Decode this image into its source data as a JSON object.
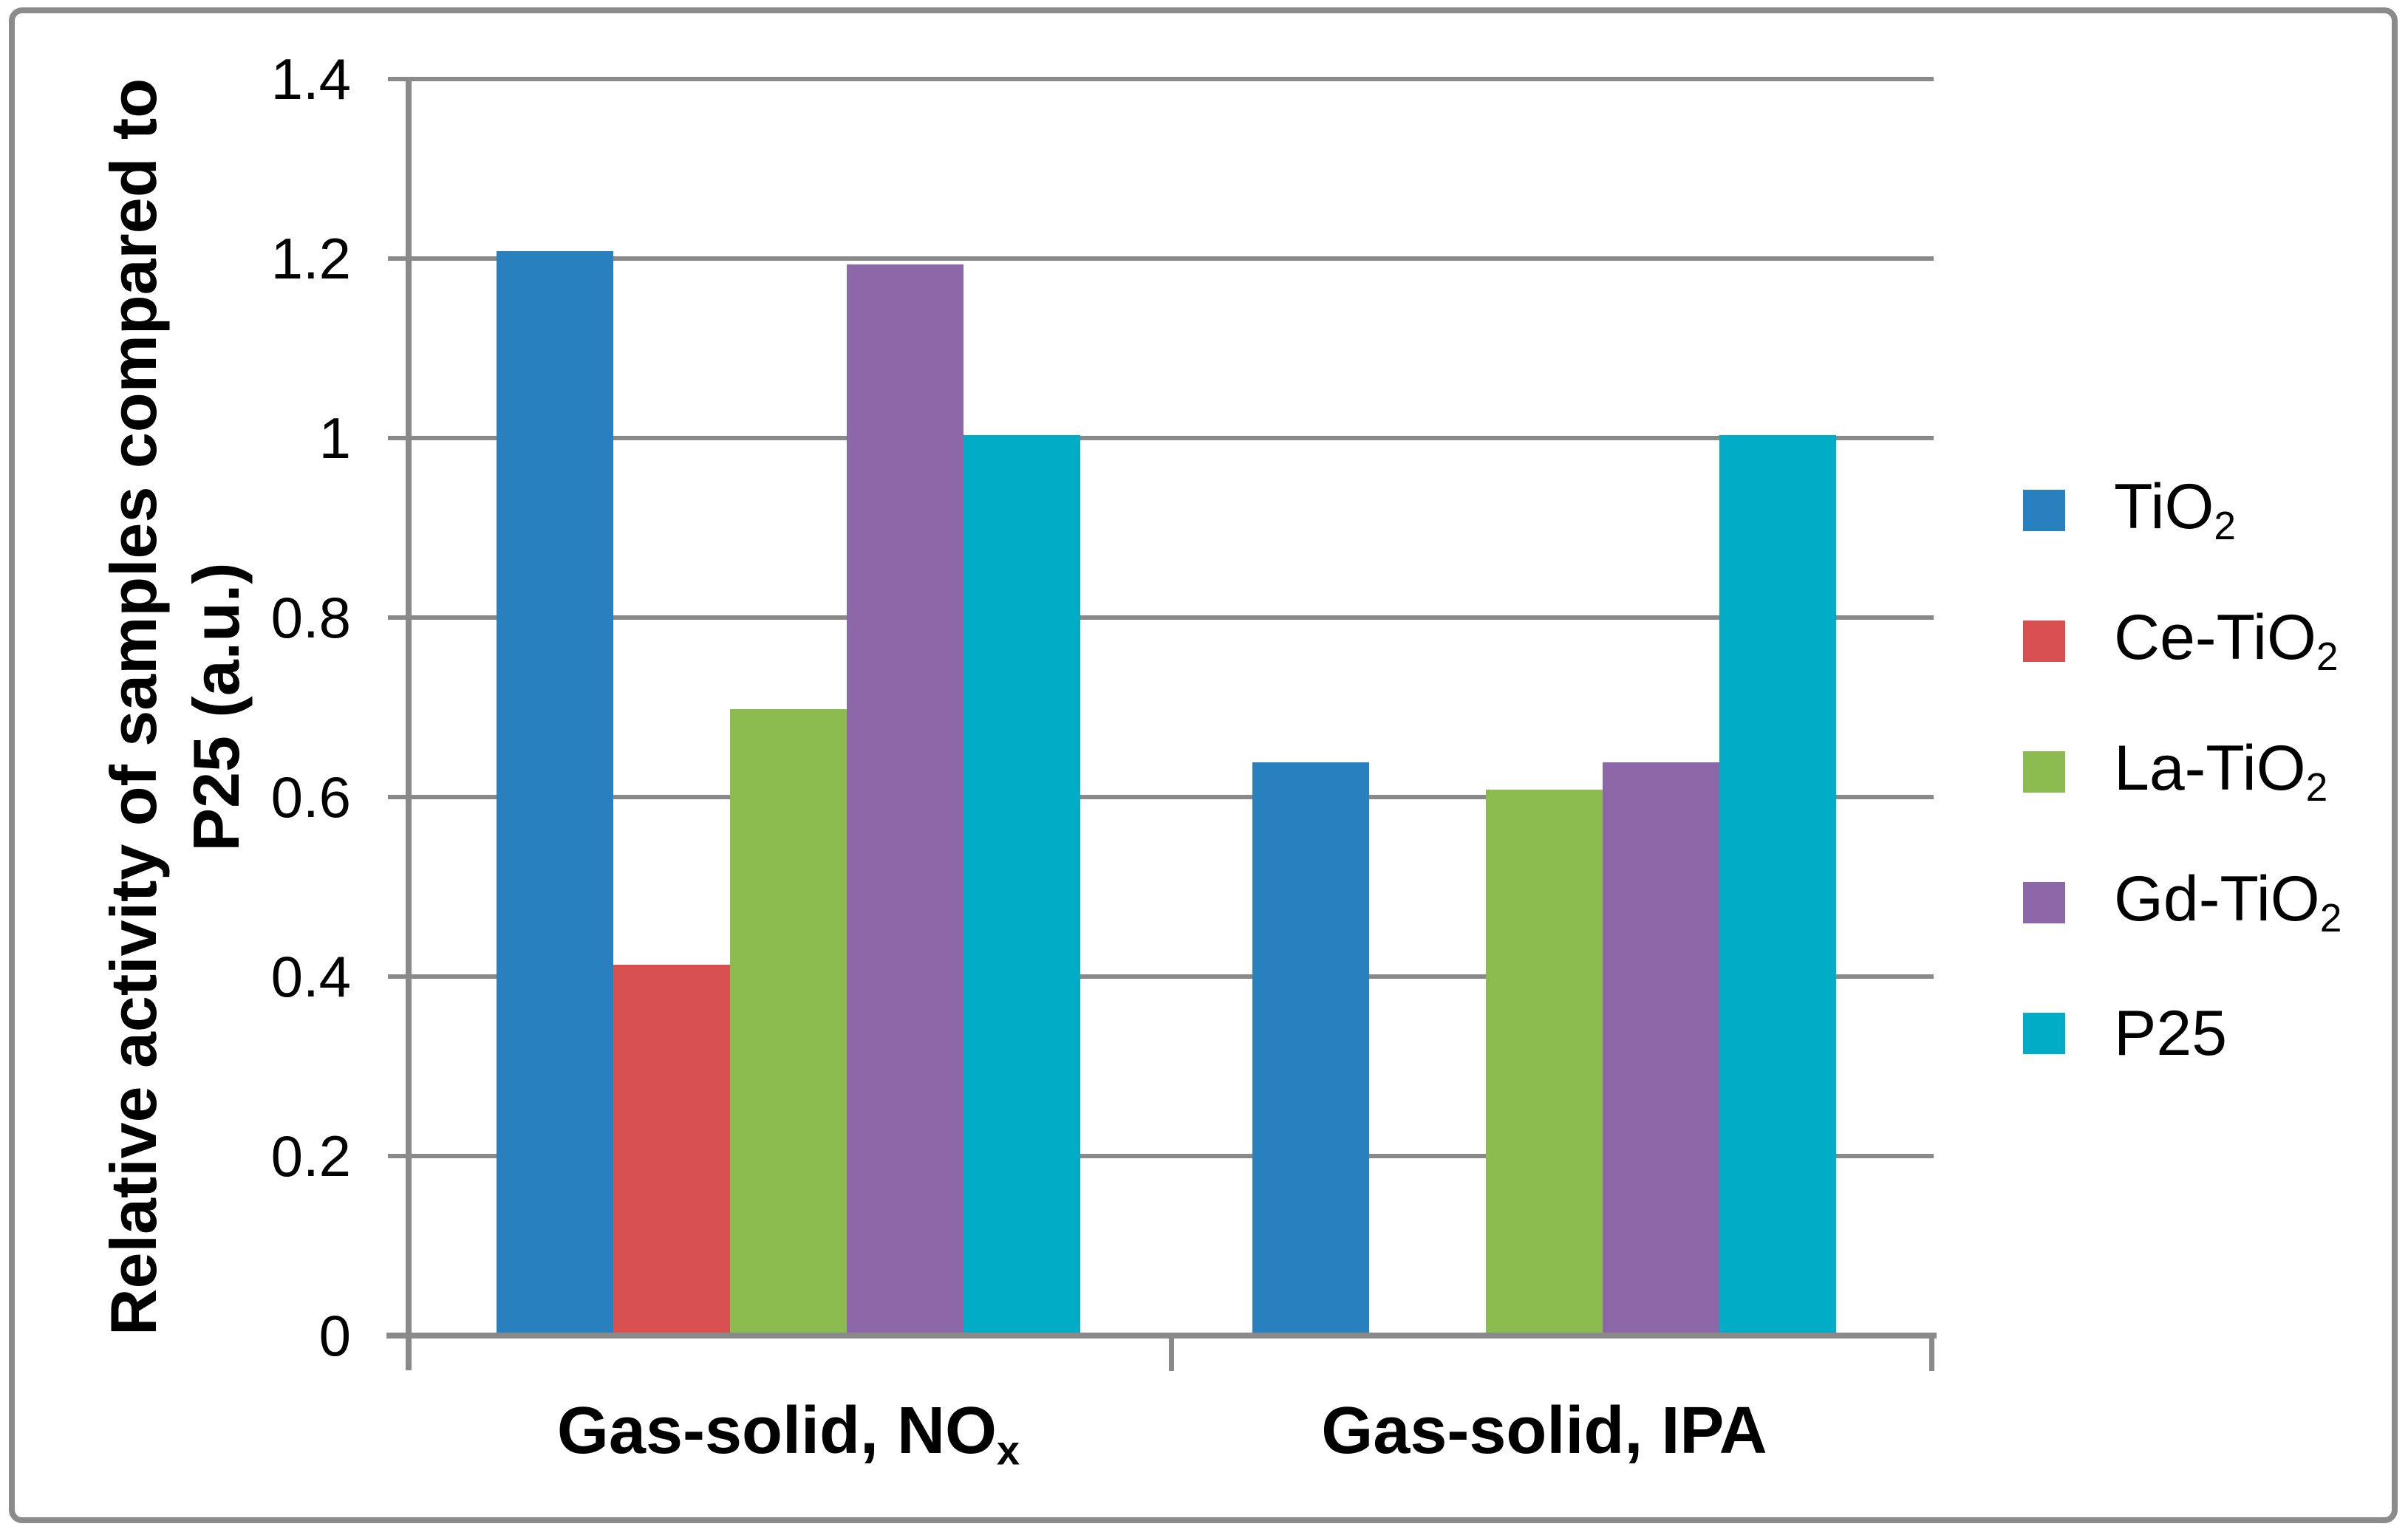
{
  "chart_data": {
    "type": "bar",
    "title": "",
    "categories": [
      {
        "label": "Gas-solid, NO",
        "sub": "x"
      },
      {
        "label": "Gas-solid, IPA",
        "sub": ""
      }
    ],
    "series": [
      {
        "name": "TiO2",
        "legend_label": "TiO",
        "legend_sub": "2",
        "color": "#2881BE",
        "values": [
          1.205,
          0.635
        ]
      },
      {
        "name": "Ce-TiO2",
        "legend_label": "Ce-TiO",
        "legend_sub": "2",
        "color": "#D85150",
        "values": [
          0.41,
          null
        ]
      },
      {
        "name": "La-TiO2",
        "legend_label": "La-TiO",
        "legend_sub": "2",
        "color": "#8CBB4F",
        "values": [
          0.695,
          0.605
        ]
      },
      {
        "name": "Gd-TiO2",
        "legend_label": "Gd-TiO",
        "legend_sub": "2",
        "color": "#8C68A9",
        "values": [
          1.19,
          0.635
        ]
      },
      {
        "name": "P25",
        "legend_label": "P25",
        "legend_sub": "",
        "color": "#00ACC6",
        "values": [
          1.0,
          1.0
        ]
      }
    ],
    "ylabel": [
      "Relative activity of samples compared to",
      "P25 (a.u.)"
    ],
    "ylim": [
      0,
      1.4
    ],
    "yticks": [
      {
        "value": 0,
        "label": "0"
      },
      {
        "value": 0.2,
        "label": "0.2"
      },
      {
        "value": 0.4,
        "label": "0.4"
      },
      {
        "value": 0.6,
        "label": "0.6"
      },
      {
        "value": 0.8,
        "label": "0.8"
      },
      {
        "value": 1.0,
        "label": "1"
      },
      {
        "value": 1.2,
        "label": "1.2"
      },
      {
        "value": 1.4,
        "label": "1.4"
      }
    ],
    "grid": true,
    "legend_position": "right",
    "colors": {
      "gridline": "#898989",
      "axis": "#8A8A8A",
      "frame_border": "#8B8B8B",
      "text": "#000000",
      "background": "#FFFFFF"
    }
  }
}
